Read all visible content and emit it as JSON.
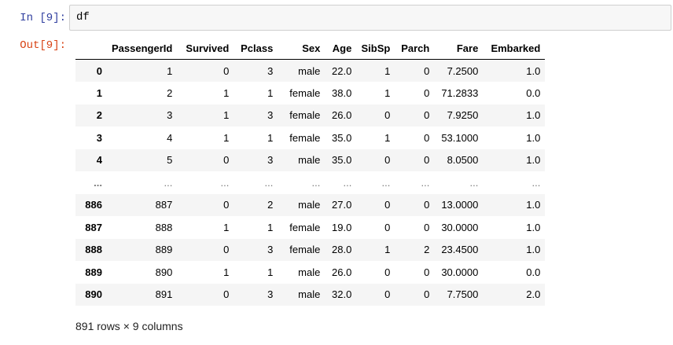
{
  "input_cell": {
    "prompt": "In [9]:",
    "code": "df"
  },
  "output_cell": {
    "prompt": "Out[9]:"
  },
  "table": {
    "columns": [
      "",
      "PassengerId",
      "Survived",
      "Pclass",
      "Sex",
      "Age",
      "SibSp",
      "Parch",
      "Fare",
      "Embarked"
    ],
    "rows": [
      [
        "0",
        "1",
        "0",
        "3",
        "male",
        "22.0",
        "1",
        "0",
        "7.2500",
        "1.0"
      ],
      [
        "1",
        "2",
        "1",
        "1",
        "female",
        "38.0",
        "1",
        "0",
        "71.2833",
        "0.0"
      ],
      [
        "2",
        "3",
        "1",
        "3",
        "female",
        "26.0",
        "0",
        "0",
        "7.9250",
        "1.0"
      ],
      [
        "3",
        "4",
        "1",
        "1",
        "female",
        "35.0",
        "1",
        "0",
        "53.1000",
        "1.0"
      ],
      [
        "4",
        "5",
        "0",
        "3",
        "male",
        "35.0",
        "0",
        "0",
        "8.0500",
        "1.0"
      ],
      [
        "...",
        "...",
        "...",
        "...",
        "...",
        "...",
        "...",
        "...",
        "...",
        "..."
      ],
      [
        "886",
        "887",
        "0",
        "2",
        "male",
        "27.0",
        "0",
        "0",
        "13.0000",
        "1.0"
      ],
      [
        "887",
        "888",
        "1",
        "1",
        "female",
        "19.0",
        "0",
        "0",
        "30.0000",
        "1.0"
      ],
      [
        "888",
        "889",
        "0",
        "3",
        "female",
        "28.0",
        "1",
        "2",
        "23.4500",
        "1.0"
      ],
      [
        "889",
        "890",
        "1",
        "1",
        "male",
        "26.0",
        "0",
        "0",
        "30.0000",
        "0.0"
      ],
      [
        "890",
        "891",
        "0",
        "3",
        "male",
        "32.0",
        "0",
        "0",
        "7.7500",
        "2.0"
      ]
    ],
    "summary": "891 rows × 9 columns"
  },
  "colors": {
    "in_prompt": "#303f9f",
    "out_prompt": "#d84315",
    "input_bg": "#f7f7f7",
    "stripe_bg": "#f5f5f5"
  }
}
